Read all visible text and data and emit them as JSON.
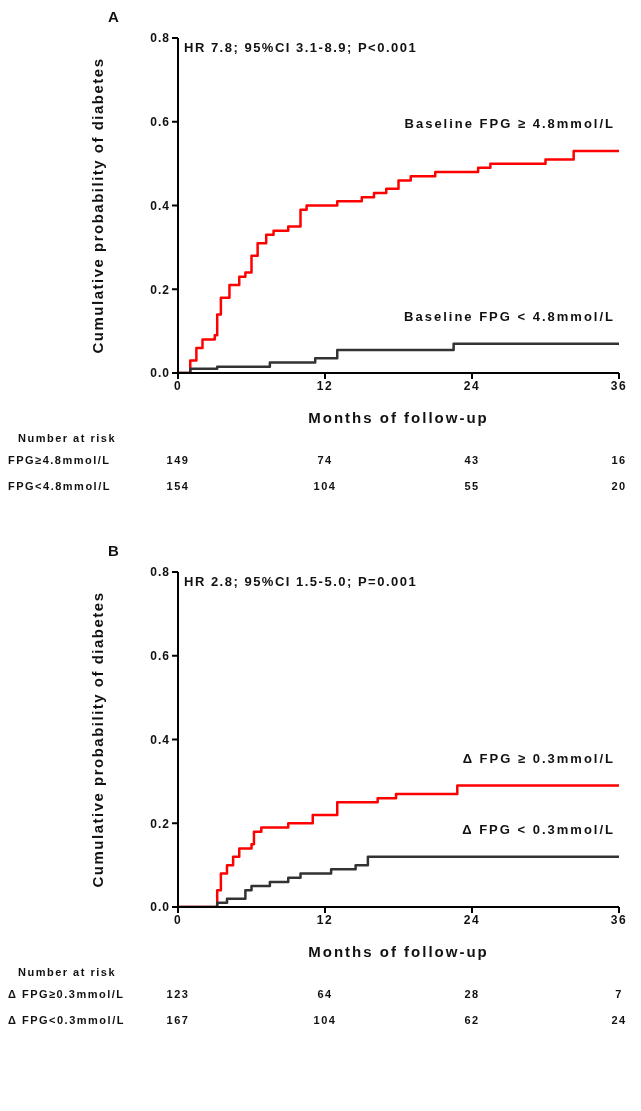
{
  "chart_data": [
    {
      "type": "step",
      "title": "A",
      "xlabel": "Months of follow-up",
      "ylabel": "Cumulative probability of diabetes",
      "xlim": [
        0,
        36
      ],
      "xticks": [
        0,
        12,
        24,
        36
      ],
      "ylim": [
        0,
        0.8
      ],
      "yticks": [
        {
          "value": 0,
          "label": "0.0"
        },
        {
          "value": 0.2,
          "label": "0.2"
        },
        {
          "value": 0.4,
          "label": "0.4"
        },
        {
          "value": 0.6,
          "label": "0.6"
        },
        {
          "value": 0.8,
          "label": "0.8"
        }
      ],
      "grid": false,
      "legend": false,
      "series": [
        {
          "name": "Baseline FPG ≥ 4.8mmol/L",
          "color": "#ff0000",
          "x": [
            0,
            0.7,
            1,
            1.5,
            2,
            3,
            3.2,
            3.5,
            4.2,
            5,
            5.5,
            6,
            6.5,
            7.2,
            7.8,
            9,
            10,
            10.5,
            13,
            15,
            16,
            17,
            18,
            19,
            21,
            24.5,
            25.5,
            30,
            32.3,
            36
          ],
          "values": [
            0,
            0,
            0.03,
            0.06,
            0.08,
            0.09,
            0.14,
            0.18,
            0.21,
            0.23,
            0.24,
            0.28,
            0.31,
            0.33,
            0.34,
            0.35,
            0.39,
            0.4,
            0.41,
            0.42,
            0.43,
            0.44,
            0.46,
            0.47,
            0.48,
            0.49,
            0.5,
            0.51,
            0.53,
            0.53
          ]
        },
        {
          "name": "Baseline FPG < 4.8mmol/L",
          "color": "#333333",
          "x": [
            0,
            1,
            3.2,
            7.5,
            11.2,
            13,
            22.5,
            36
          ],
          "values": [
            0,
            0.01,
            0.015,
            0.025,
            0.035,
            0.055,
            0.07,
            0.07
          ]
        }
      ],
      "annotations": [
        "HR 7.8; 95%CI 3.1-8.9; P<0.001",
        "Number at risk",
        "FPG≥4.8mmol/L",
        "149",
        "74",
        "43",
        "16",
        "FPG<4.8mmol/L",
        "154",
        "104",
        "55",
        "20"
      ]
    },
    {
      "type": "step",
      "title": "B",
      "xlabel": "Months of follow-up",
      "ylabel": "Cumulative probability of diabetes",
      "xlim": [
        0,
        36
      ],
      "xticks": [
        0,
        12,
        24,
        36
      ],
      "ylim": [
        0,
        0.8
      ],
      "yticks": [
        {
          "value": 0,
          "label": "0.0"
        },
        {
          "value": 0.2,
          "label": "0.2"
        },
        {
          "value": 0.4,
          "label": "0.4"
        },
        {
          "value": 0.6,
          "label": "0.6"
        },
        {
          "value": 0.8,
          "label": "0.8"
        }
      ],
      "grid": false,
      "legend": false,
      "series": [
        {
          "name": "Δ FPG ≥ 0.3mmol/L",
          "color": "#ff0000",
          "x": [
            0,
            3,
            3.2,
            3.5,
            4,
            4.5,
            5,
            6,
            6.2,
            6.8,
            9,
            11,
            13,
            16.3,
            17.8,
            22.8,
            36
          ],
          "values": [
            0,
            0,
            0.04,
            0.08,
            0.1,
            0.12,
            0.14,
            0.15,
            0.18,
            0.19,
            0.2,
            0.22,
            0.25,
            0.26,
            0.27,
            0.29,
            0.29
          ]
        },
        {
          "name": "Δ FPG < 0.3mmol/L",
          "color": "#333333",
          "x": [
            0,
            3,
            3.2,
            4,
            5.5,
            6,
            7.5,
            9,
            10,
            12.5,
            14.5,
            15.5,
            36
          ],
          "values": [
            0,
            0,
            0.01,
            0.02,
            0.04,
            0.05,
            0.06,
            0.07,
            0.08,
            0.09,
            0.1,
            0.12,
            0.12
          ]
        }
      ],
      "annotations": [
        "HR 2.8; 95%CI 1.5-5.0; P=0.001",
        "Number at risk",
        "Δ FPG≥0.3mmol/L",
        "123",
        "64",
        "28",
        "7",
        "Δ FPG<0.3mmol/L",
        "167",
        "104",
        "62",
        "24"
      ]
    }
  ]
}
